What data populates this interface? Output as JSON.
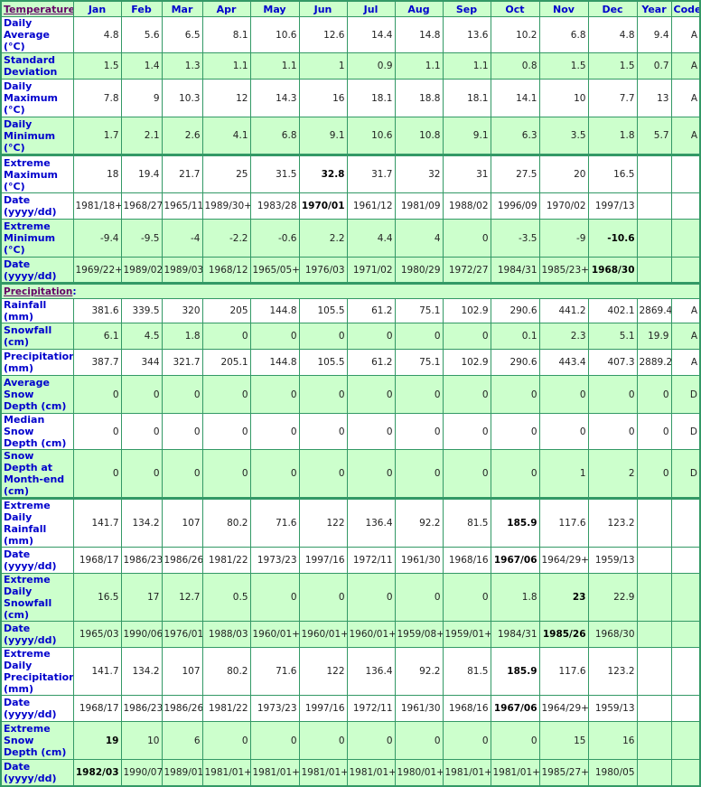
{
  "columns": [
    "Jan",
    "Feb",
    "Mar",
    "Apr",
    "May",
    "Jun",
    "Jul",
    "Aug",
    "Sep",
    "Oct",
    "Nov",
    "Dec",
    "Year",
    "Code"
  ],
  "sections": [
    {
      "title": "Temperature",
      "rows": [
        {
          "label": "Daily Average (°C)",
          "values": [
            "4.8",
            "5.6",
            "6.5",
            "8.1",
            "10.6",
            "12.6",
            "14.4",
            "14.8",
            "13.6",
            "10.2",
            "6.8",
            "4.8",
            "9.4",
            "A"
          ],
          "bold": []
        },
        {
          "label": "Standard Deviation",
          "values": [
            "1.5",
            "1.4",
            "1.3",
            "1.1",
            "1.1",
            "1",
            "0.9",
            "1.1",
            "1.1",
            "0.8",
            "1.5",
            "1.5",
            "0.7",
            "A"
          ],
          "bold": []
        },
        {
          "label": "Daily Maximum (°C)",
          "values": [
            "7.8",
            "9",
            "10.3",
            "12",
            "14.3",
            "16",
            "18.1",
            "18.8",
            "18.1",
            "14.1",
            "10",
            "7.7",
            "13",
            "A"
          ],
          "bold": []
        },
        {
          "label": "Daily Minimum (°C)",
          "values": [
            "1.7",
            "2.1",
            "2.6",
            "4.1",
            "6.8",
            "9.1",
            "10.6",
            "10.8",
            "9.1",
            "6.3",
            "3.5",
            "1.8",
            "5.7",
            "A"
          ],
          "bold": []
        },
        {
          "label": "Extreme Maximum (°C)",
          "values": [
            "18",
            "19.4",
            "21.7",
            "25",
            "31.5",
            "32.8",
            "31.7",
            "32",
            "31",
            "27.5",
            "20",
            "16.5",
            "",
            ""
          ],
          "bold": [
            5
          ]
        },
        {
          "label": "Date (yyyy/dd)",
          "values": [
            "1981/18+",
            "1968/27",
            "1965/11",
            "1989/30+",
            "1983/28",
            "1970/01",
            "1961/12",
            "1981/09",
            "1988/02",
            "1996/09",
            "1970/02",
            "1997/13",
            "",
            ""
          ],
          "bold": [
            5
          ]
        },
        {
          "label": "Extreme Minimum (°C)",
          "values": [
            "-9.4",
            "-9.5",
            "-4",
            "-2.2",
            "-0.6",
            "2.2",
            "4.4",
            "4",
            "0",
            "-3.5",
            "-9",
            "-10.6",
            "",
            ""
          ],
          "bold": [
            11
          ]
        },
        {
          "label": "Date (yyyy/dd)",
          "values": [
            "1969/22+",
            "1989/02",
            "1989/03",
            "1968/12",
            "1965/05+",
            "1976/03",
            "1971/02",
            "1980/29",
            "1972/27",
            "1984/31",
            "1985/23+",
            "1968/30",
            "",
            ""
          ],
          "bold": [
            11
          ]
        }
      ]
    },
    {
      "title": "Precipitation",
      "rows": [
        {
          "label": "Rainfall (mm)",
          "values": [
            "381.6",
            "339.5",
            "320",
            "205",
            "144.8",
            "105.5",
            "61.2",
            "75.1",
            "102.9",
            "290.6",
            "441.2",
            "402.1",
            "2869.4",
            "A"
          ],
          "bold": []
        },
        {
          "label": "Snowfall (cm)",
          "values": [
            "6.1",
            "4.5",
            "1.8",
            "0",
            "0",
            "0",
            "0",
            "0",
            "0",
            "0.1",
            "2.3",
            "5.1",
            "19.9",
            "A"
          ],
          "bold": []
        },
        {
          "label": "Precipitation (mm)",
          "values": [
            "387.7",
            "344",
            "321.7",
            "205.1",
            "144.8",
            "105.5",
            "61.2",
            "75.1",
            "102.9",
            "290.6",
            "443.4",
            "407.3",
            "2889.2",
            "A"
          ],
          "bold": []
        },
        {
          "label": "Average Snow Depth (cm)",
          "values": [
            "0",
            "0",
            "0",
            "0",
            "0",
            "0",
            "0",
            "0",
            "0",
            "0",
            "0",
            "0",
            "0",
            "D"
          ],
          "bold": []
        },
        {
          "label": "Median Snow Depth (cm)",
          "values": [
            "0",
            "0",
            "0",
            "0",
            "0",
            "0",
            "0",
            "0",
            "0",
            "0",
            "0",
            "0",
            "0",
            "D"
          ],
          "bold": []
        },
        {
          "label": "Snow Depth at Month-end (cm)",
          "values": [
            "0",
            "0",
            "0",
            "0",
            "0",
            "0",
            "0",
            "0",
            "0",
            "0",
            "1",
            "2",
            "0",
            "D"
          ],
          "bold": []
        },
        {
          "label": "Extreme Daily Rainfall (mm)",
          "values": [
            "141.7",
            "134.2",
            "107",
            "80.2",
            "71.6",
            "122",
            "136.4",
            "92.2",
            "81.5",
            "185.9",
            "117.6",
            "123.2",
            "",
            ""
          ],
          "bold": [
            9
          ]
        },
        {
          "label": "Date (yyyy/dd)",
          "values": [
            "1968/17",
            "1986/23",
            "1986/26",
            "1981/22",
            "1973/23",
            "1997/16",
            "1972/11",
            "1961/30",
            "1968/16",
            "1967/06",
            "1964/29+",
            "1959/13",
            "",
            ""
          ],
          "bold": [
            9
          ]
        },
        {
          "label": "Extreme Daily Snowfall (cm)",
          "values": [
            "16.5",
            "17",
            "12.7",
            "0.5",
            "0",
            "0",
            "0",
            "0",
            "0",
            "1.8",
            "23",
            "22.9",
            "",
            ""
          ],
          "bold": [
            10
          ]
        },
        {
          "label": "Date (yyyy/dd)",
          "values": [
            "1965/03",
            "1990/06",
            "1976/01",
            "1988/03",
            "1960/01+",
            "1960/01+",
            "1960/01+",
            "1959/08+",
            "1959/01+",
            "1984/31",
            "1985/26",
            "1968/30",
            "",
            ""
          ],
          "bold": [
            10
          ]
        },
        {
          "label": "Extreme Daily Precipitation (mm)",
          "values": [
            "141.7",
            "134.2",
            "107",
            "80.2",
            "71.6",
            "122",
            "136.4",
            "92.2",
            "81.5",
            "185.9",
            "117.6",
            "123.2",
            "",
            ""
          ],
          "bold": [
            9
          ]
        },
        {
          "label": "Date (yyyy/dd)",
          "values": [
            "1968/17",
            "1986/23",
            "1986/26",
            "1981/22",
            "1973/23",
            "1997/16",
            "1972/11",
            "1961/30",
            "1968/16",
            "1967/06",
            "1964/29+",
            "1959/13",
            "",
            ""
          ],
          "bold": [
            9
          ]
        },
        {
          "label": "Extreme Snow Depth (cm)",
          "values": [
            "19",
            "10",
            "6",
            "0",
            "0",
            "0",
            "0",
            "0",
            "0",
            "0",
            "15",
            "16",
            "",
            ""
          ],
          "bold": [
            0
          ]
        },
        {
          "label": "Date (yyyy/dd)",
          "values": [
            "1982/03",
            "1990/07",
            "1989/01",
            "1981/01+",
            "1981/01+",
            "1981/01+",
            "1981/01+",
            "1980/01+",
            "1981/01+",
            "1981/01+",
            "1985/27+",
            "1980/05",
            "",
            ""
          ],
          "bold": [
            0
          ]
        }
      ]
    }
  ],
  "colors": {
    "border": "#339966",
    "header_bg": "#ccffcc",
    "label": "#0000cc",
    "section_title": "#660066"
  }
}
